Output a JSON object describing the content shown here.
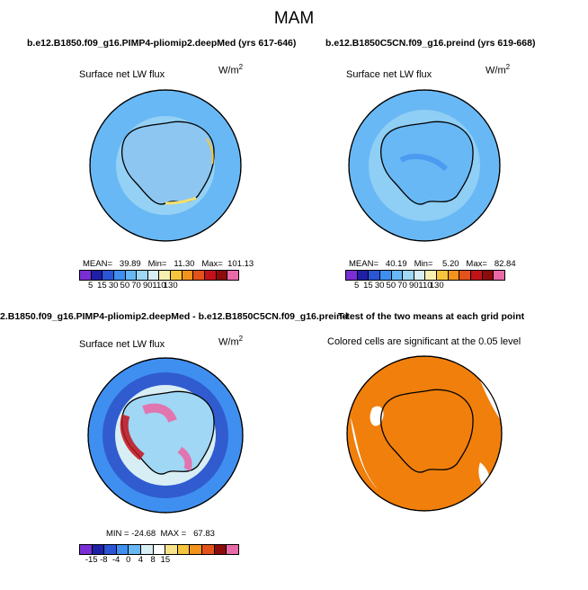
{
  "suptitle": "MAM",
  "panels": {
    "p1": {
      "title": "b.e12.B1850.f09_g16.PIMP4-pliomip2.deepMed (yrs 617-646)",
      "variable": "Surface net LW flux",
      "units_base": "W/m",
      "units_exp": "2",
      "stats": "MEAN=   39.89   Min=   11.30   Max=  101.13"
    },
    "p2": {
      "title": "b.e12.B1850C5CN.f09_g16.preind (yrs 619-668)",
      "variable": "Surface net LW flux",
      "units_base": "W/m",
      "units_exp": "2",
      "stats": "MEAN=   40.19   Min=    5.20   Max=   82.84"
    },
    "p3": {
      "title": "2.B1850.f09_g16.PIMP4-pliomip2.deepMed - b.e12.B1850C5CN.f09_g16.preind",
      "variable": "Surface net LW flux",
      "units_base": "W/m",
      "units_exp": "2",
      "stats": "MIN = -24.68  MAX =   67.83"
    },
    "p4": {
      "title": "T-test of the two means at each grid point",
      "variable": "Colored cells are significant at the 0.05 level"
    }
  },
  "colorbars": {
    "abs": {
      "colors": [
        "#7a2ed6",
        "#1f1fa8",
        "#2a55d6",
        "#3f8ff0",
        "#68b8f5",
        "#9fd7f5",
        "#d8eef5",
        "#f7f0b0",
        "#f6c53d",
        "#f3931c",
        "#e3521a",
        "#c1121a",
        "#8c0b0b",
        "#e86aa8"
      ],
      "labels": [
        "5",
        "15",
        "30",
        "50",
        "70",
        "90",
        "110",
        "130"
      ]
    },
    "diff": {
      "colors": [
        "#7a2ed6",
        "#1f1fa8",
        "#2a55d6",
        "#3f8ff0",
        "#68b8f5",
        "#d8eef5",
        "#ffffff",
        "#f7e48a",
        "#f6c53d",
        "#f3931c",
        "#e3521a",
        "#8c0b0b",
        "#e86aa8"
      ],
      "labels": [
        "-15",
        "-8",
        "-4",
        "0",
        "4",
        "8",
        "15"
      ]
    }
  },
  "colors": {
    "ocean_mid": "#68b8f5",
    "ocean_light": "#9fd7f5",
    "ocean_deep": "#3f8ff0",
    "land_fill": "#8ec6f2",
    "significant": "#f07f0c"
  }
}
